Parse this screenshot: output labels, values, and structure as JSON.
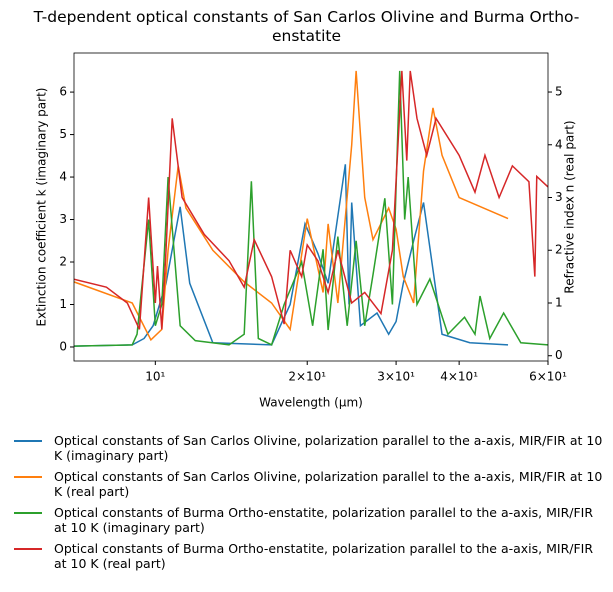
{
  "chart_data": {
    "type": "line",
    "title": "T-dependent optical constants of San Carlos Olivine and Burma Ortho-enstatite",
    "xlabel": "Wavelength (μm)",
    "ylabel": "Extinction coefficient k (imaginary part)",
    "y2label": "Refractive index n (real part)",
    "xscale": "log",
    "xlim": [
      6.9,
      60
    ],
    "ylim": [
      -0.33,
      6.92
    ],
    "y2lim": [
      -0.1,
      5.74
    ],
    "xticks": [
      {
        "value": 10,
        "label": "10¹"
      },
      {
        "value": 20,
        "label": "2×10¹"
      },
      {
        "value": 30,
        "label": "3×10¹"
      },
      {
        "value": 40,
        "label": "4×10¹"
      },
      {
        "value": 60,
        "label": "6×10¹"
      }
    ],
    "yticks": [
      0,
      1,
      2,
      3,
      4,
      5,
      6
    ],
    "y2ticks": [
      0,
      1,
      2,
      3,
      4,
      5
    ],
    "series": [
      {
        "name": "Optical constants of San Carlos Olivine, polarization parallel to the a-axis, MIR/FIR at 10 K (imaginary part)",
        "color": "#1f77b4",
        "axis": "y",
        "x": [
          6.9,
          9,
          9.5,
          9.9,
          10.5,
          11.2,
          11.7,
          13,
          17,
          18.5,
          19.8,
          21,
          22,
          23.8,
          24.2,
          24.5,
          25.5,
          27.5,
          29,
          30,
          31,
          32.5,
          34,
          37,
          42,
          50
        ],
        "values": [
          0.02,
          0.05,
          0.2,
          0.5,
          1.5,
          3.3,
          1.5,
          0.1,
          0.05,
          1.0,
          2.9,
          2.2,
          1.5,
          4.3,
          1.0,
          3.4,
          0.5,
          0.8,
          0.3,
          0.6,
          1.5,
          2.5,
          3.4,
          0.3,
          0.1,
          0.05
        ]
      },
      {
        "name": "Optical constants of San Carlos Olivine, polarization parallel to the a-axis, MIR/FIR at 10 K (real part)",
        "color": "#ff7f0e",
        "axis": "y2",
        "x": [
          6.9,
          9,
          9.8,
          10.3,
          10.6,
          11.1,
          11.5,
          13,
          15,
          17,
          18.5,
          20,
          21.5,
          22,
          23,
          24.5,
          25,
          26,
          27,
          29,
          30,
          31,
          32.5,
          34,
          35.5,
          37,
          40,
          50
        ],
        "values": [
          1.4,
          1.0,
          0.3,
          0.5,
          2.0,
          3.6,
          2.8,
          2.0,
          1.4,
          1.0,
          0.5,
          2.6,
          1.2,
          2.5,
          1.0,
          4.0,
          5.4,
          3.0,
          2.2,
          2.8,
          2.4,
          1.5,
          1.0,
          3.5,
          4.7,
          3.8,
          3.0,
          2.6
        ]
      },
      {
        "name": "Optical constants of Burma Ortho-enstatite, polarization parallel to the a-axis, MIR/FIR at 10 K (imaginary part)",
        "color": "#2ca02c",
        "axis": "y",
        "x": [
          6.9,
          9,
          9.2,
          9.7,
          10,
          10.3,
          10.6,
          11.2,
          12,
          14,
          15,
          15.5,
          16,
          17,
          18,
          19.5,
          20.5,
          21.5,
          22,
          23,
          24,
          25,
          26,
          27,
          28.5,
          29.5,
          30.5,
          31.2,
          31.7,
          33,
          35,
          38,
          41,
          43,
          44,
          46,
          49,
          53,
          60
        ],
        "values": [
          0.02,
          0.05,
          0.3,
          3.0,
          0.5,
          1.0,
          4.0,
          0.5,
          0.15,
          0.05,
          0.3,
          3.9,
          0.2,
          0.05,
          1.0,
          2.0,
          0.5,
          2.3,
          0.4,
          2.6,
          0.5,
          2.5,
          0.5,
          1.7,
          3.5,
          1.0,
          6.5,
          3.0,
          4.0,
          1.0,
          1.6,
          0.3,
          0.7,
          0.3,
          1.2,
          0.2,
          0.8,
          0.1,
          0.05
        ]
      },
      {
        "name": "Optical constants of Burma Ortho-enstatite, polarization parallel to the a-axis, MIR/FIR at 10 K (real part)",
        "color": "#d62728",
        "axis": "y2",
        "x": [
          6.9,
          8,
          8.8,
          9.3,
          9.7,
          10,
          10.1,
          10.3,
          10.5,
          10.8,
          11.3,
          12.5,
          14,
          15,
          15.7,
          17,
          18,
          18.5,
          19.5,
          20,
          21,
          22,
          23,
          24.5,
          26,
          28,
          29.5,
          30.8,
          31.5,
          32,
          33,
          34.5,
          36,
          40,
          43,
          45,
          48,
          51,
          55,
          56.5,
          57,
          60
        ],
        "values": [
          1.45,
          1.3,
          1.0,
          0.5,
          3.0,
          1.0,
          1.7,
          0.5,
          2.0,
          4.5,
          3.0,
          2.3,
          1.8,
          1.3,
          2.2,
          1.5,
          0.6,
          2.0,
          1.5,
          2.1,
          1.8,
          1.2,
          2.0,
          1.0,
          1.2,
          0.8,
          2.0,
          5.4,
          3.7,
          5.4,
          4.5,
          3.8,
          4.5,
          3.8,
          3.1,
          3.8,
          3.0,
          3.6,
          3.3,
          1.5,
          3.4,
          3.2
        ]
      }
    ]
  }
}
